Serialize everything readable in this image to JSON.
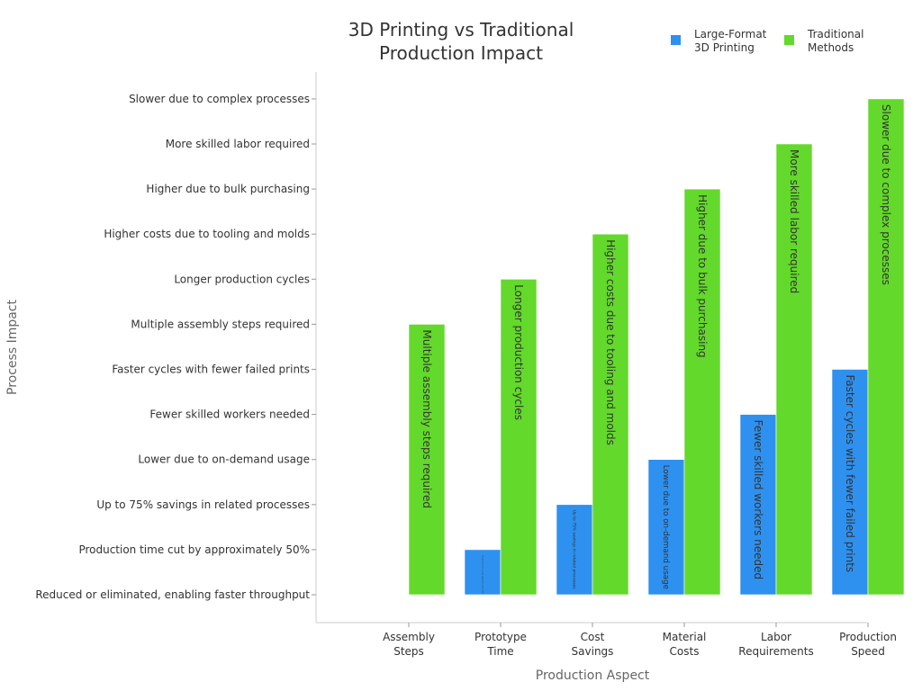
{
  "chart_data": {
    "type": "bar",
    "title_lines": [
      "3D Printing vs Traditional",
      "Production Impact"
    ],
    "xlabel": "Production Aspect",
    "ylabel": "Process Impact",
    "categories": [
      [
        "Assembly",
        "Steps"
      ],
      [
        "Prototype",
        "Time"
      ],
      [
        "Cost",
        "Savings"
      ],
      [
        "Material",
        "Costs"
      ],
      [
        "Labor",
        "Requirements"
      ],
      [
        "Production",
        "Speed"
      ]
    ],
    "y_categories": [
      "Reduced or eliminated, enabling faster throughput",
      "Production time cut by approximately 50%",
      "Up to 75% savings in related processes",
      "Lower due to on-demand usage",
      "Fewer skilled workers needed",
      "Faster cycles with fewer failed prints",
      "Multiple assembly steps required",
      "Longer production cycles",
      "Higher costs due to tooling and molds",
      "Higher due to bulk purchasing",
      "More skilled labor required",
      "Slower due to complex processes"
    ],
    "series": [
      {
        "name_lines": [
          "Large-Format",
          "3D Printing"
        ],
        "color": "#2e91f0",
        "values": [
          "Reduced or eliminated, enabling faster throughput",
          "Production time cut by approximately 50%",
          "Up to 75% savings in related processes",
          "Lower due to on-demand usage",
          "Fewer skilled workers needed",
          "Faster cycles with fewer failed prints"
        ]
      },
      {
        "name_lines": [
          "Traditional",
          "Methods"
        ],
        "color": "#63d92b",
        "values": [
          "Multiple assembly steps required",
          "Longer production cycles",
          "Higher costs due to tooling and molds",
          "Higher due to bulk purchasing",
          "More skilled labor required",
          "Slower due to complex processes"
        ]
      }
    ],
    "legend_position": "top-right",
    "grid": false
  }
}
